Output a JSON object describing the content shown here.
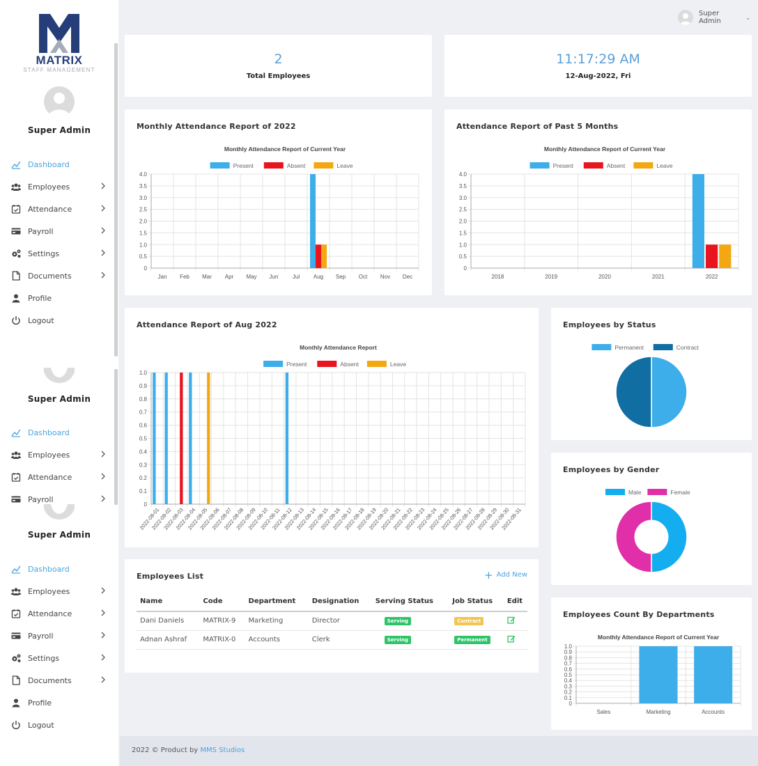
{
  "brand": {
    "name": "MATRIX",
    "tagline": "STAFF MANAGEMENT"
  },
  "user": {
    "name": "Super Admin",
    "menu_label": "Super Admin"
  },
  "nav": [
    "Dashboard",
    "Employees",
    "Attendance",
    "Payroll",
    "Settings",
    "Documents",
    "Profile",
    "Logout"
  ],
  "stats": {
    "total_employees": {
      "value": "2",
      "label": "Total Employees"
    },
    "clock": {
      "time": "11:17:29 AM",
      "date": "12-Aug-2022, Fri"
    }
  },
  "cards": {
    "monthly": "Monthly Attendance Report of 2022",
    "past5": "Attendance Report of Past 5 Months",
    "aug": "Attendance Report of Aug 2022",
    "status": "Employees by Status",
    "gender": "Employees by Gender",
    "dept": "Employees Count By Departments",
    "list": "Employees List"
  },
  "add_new": "Add New",
  "table": {
    "headers": [
      "Name",
      "Code",
      "Department",
      "Designation",
      "Serving Status",
      "Job Status",
      "Edit"
    ],
    "rows": [
      [
        "Dani Daniels",
        "MATRIX-9",
        "Marketing",
        "Director",
        "Serving",
        "Contract"
      ],
      [
        "Adnan Ashraf",
        "MATRIX-0",
        "Accounts",
        "Clerk",
        "Serving",
        "Permanent"
      ]
    ]
  },
  "footer": {
    "text": "2022 © Product by ",
    "link": "MMS Studios"
  },
  "colors": {
    "present": "#3daee9",
    "absent": "#e8141e",
    "leave": "#f3a712",
    "permanent": "#3daee9",
    "contract": "#106ea3",
    "male": "#14aef0",
    "female": "#e02fa8",
    "accent": "#4aa3df"
  },
  "chart_data": [
    {
      "type": "bar",
      "title": "Monthly Attendance Report of Current Year",
      "categories": [
        "Jan",
        "Feb",
        "Mar",
        "Apr",
        "May",
        "Jun",
        "Jul",
        "Aug",
        "Sep",
        "Oct",
        "Nov",
        "Dec"
      ],
      "series": [
        {
          "name": "Present",
          "values": [
            0,
            0,
            0,
            0,
            0,
            0,
            0,
            4,
            0,
            0,
            0,
            0
          ]
        },
        {
          "name": "Absent",
          "values": [
            0,
            0,
            0,
            0,
            0,
            0,
            0,
            1,
            0,
            0,
            0,
            0
          ]
        },
        {
          "name": "Leave",
          "values": [
            0,
            0,
            0,
            0,
            0,
            0,
            0,
            1,
            0,
            0,
            0,
            0
          ]
        }
      ],
      "yticks": [
        "0",
        "0.5",
        "1.0",
        "1.5",
        "2.0",
        "2.5",
        "3.0",
        "3.5",
        "4.0"
      ],
      "ylim": [
        0,
        4
      ]
    },
    {
      "type": "bar",
      "title": "Monthly Attendance Report of Current Year",
      "categories": [
        "2018",
        "2019",
        "2020",
        "2021",
        "2022"
      ],
      "series": [
        {
          "name": "Present",
          "values": [
            0,
            0,
            0,
            0,
            4
          ]
        },
        {
          "name": "Absent",
          "values": [
            0,
            0,
            0,
            0,
            1
          ]
        },
        {
          "name": "Leave",
          "values": [
            0,
            0,
            0,
            0,
            1
          ]
        }
      ],
      "yticks": [
        "0",
        "0.5",
        "1.0",
        "1.5",
        "2.0",
        "2.5",
        "3.0",
        "3.5",
        "4.0"
      ],
      "ylim": [
        0,
        4
      ]
    },
    {
      "type": "bar",
      "title": "Monthly Attendance Report",
      "categories": [
        "2022-08-01",
        "2022-08-02",
        "2022-08-03",
        "2022-08-04",
        "2022-08-05",
        "2022-08-06",
        "2022-08-07",
        "2022-08-08",
        "2022-08-09",
        "2022-08-10",
        "2022-08-11",
        "2022-08-12",
        "2022-08-13",
        "2022-08-14",
        "2022-08-15",
        "2022-08-16",
        "2022-08-17",
        "2022-08-18",
        "2022-08-19",
        "2022-08-20",
        "2022-08-21",
        "2022-08-22",
        "2022-08-23",
        "2022-08-24",
        "2022-08-25",
        "2022-08-26",
        "2022-08-27",
        "2022-08-28",
        "2022-08-29",
        "2022-08-30",
        "2022-08-31"
      ],
      "series": [
        {
          "name": "Present",
          "values": [
            1,
            1,
            0,
            1,
            0,
            0,
            0,
            0,
            0,
            0,
            0,
            1,
            0,
            0,
            0,
            0,
            0,
            0,
            0,
            0,
            0,
            0,
            0,
            0,
            0,
            0,
            0,
            0,
            0,
            0,
            0
          ]
        },
        {
          "name": "Absent",
          "values": [
            0,
            0,
            1,
            0,
            0,
            0,
            0,
            0,
            0,
            0,
            0,
            0,
            0,
            0,
            0,
            0,
            0,
            0,
            0,
            0,
            0,
            0,
            0,
            0,
            0,
            0,
            0,
            0,
            0,
            0,
            0
          ]
        },
        {
          "name": "Leave",
          "values": [
            0,
            0,
            0,
            0,
            1,
            0,
            0,
            0,
            0,
            0,
            0,
            0,
            0,
            0,
            0,
            0,
            0,
            0,
            0,
            0,
            0,
            0,
            0,
            0,
            0,
            0,
            0,
            0,
            0,
            0,
            0
          ]
        }
      ],
      "yticks": [
        "0",
        "0.1",
        "0.2",
        "0.3",
        "0.4",
        "0.5",
        "0.6",
        "0.7",
        "0.8",
        "0.9",
        "1.0"
      ],
      "ylim": [
        0,
        1
      ]
    },
    {
      "type": "pie",
      "categories": [
        "Permanent",
        "Contract"
      ],
      "values": [
        1,
        1
      ]
    },
    {
      "type": "pie",
      "categories": [
        "Male",
        "Female"
      ],
      "values": [
        1,
        1
      ]
    },
    {
      "type": "bar",
      "title": "Monthly Attendance Report of Current Year",
      "categories": [
        "Sales",
        "Marketing",
        "Accounts"
      ],
      "values": [
        0,
        1,
        1
      ],
      "yticks": [
        "0",
        "0.1",
        "0.2",
        "0.3",
        "0.4",
        "0.5",
        "0.6",
        "0.7",
        "0.8",
        "0.9",
        "1.0"
      ],
      "ylim": [
        0,
        1
      ]
    }
  ]
}
